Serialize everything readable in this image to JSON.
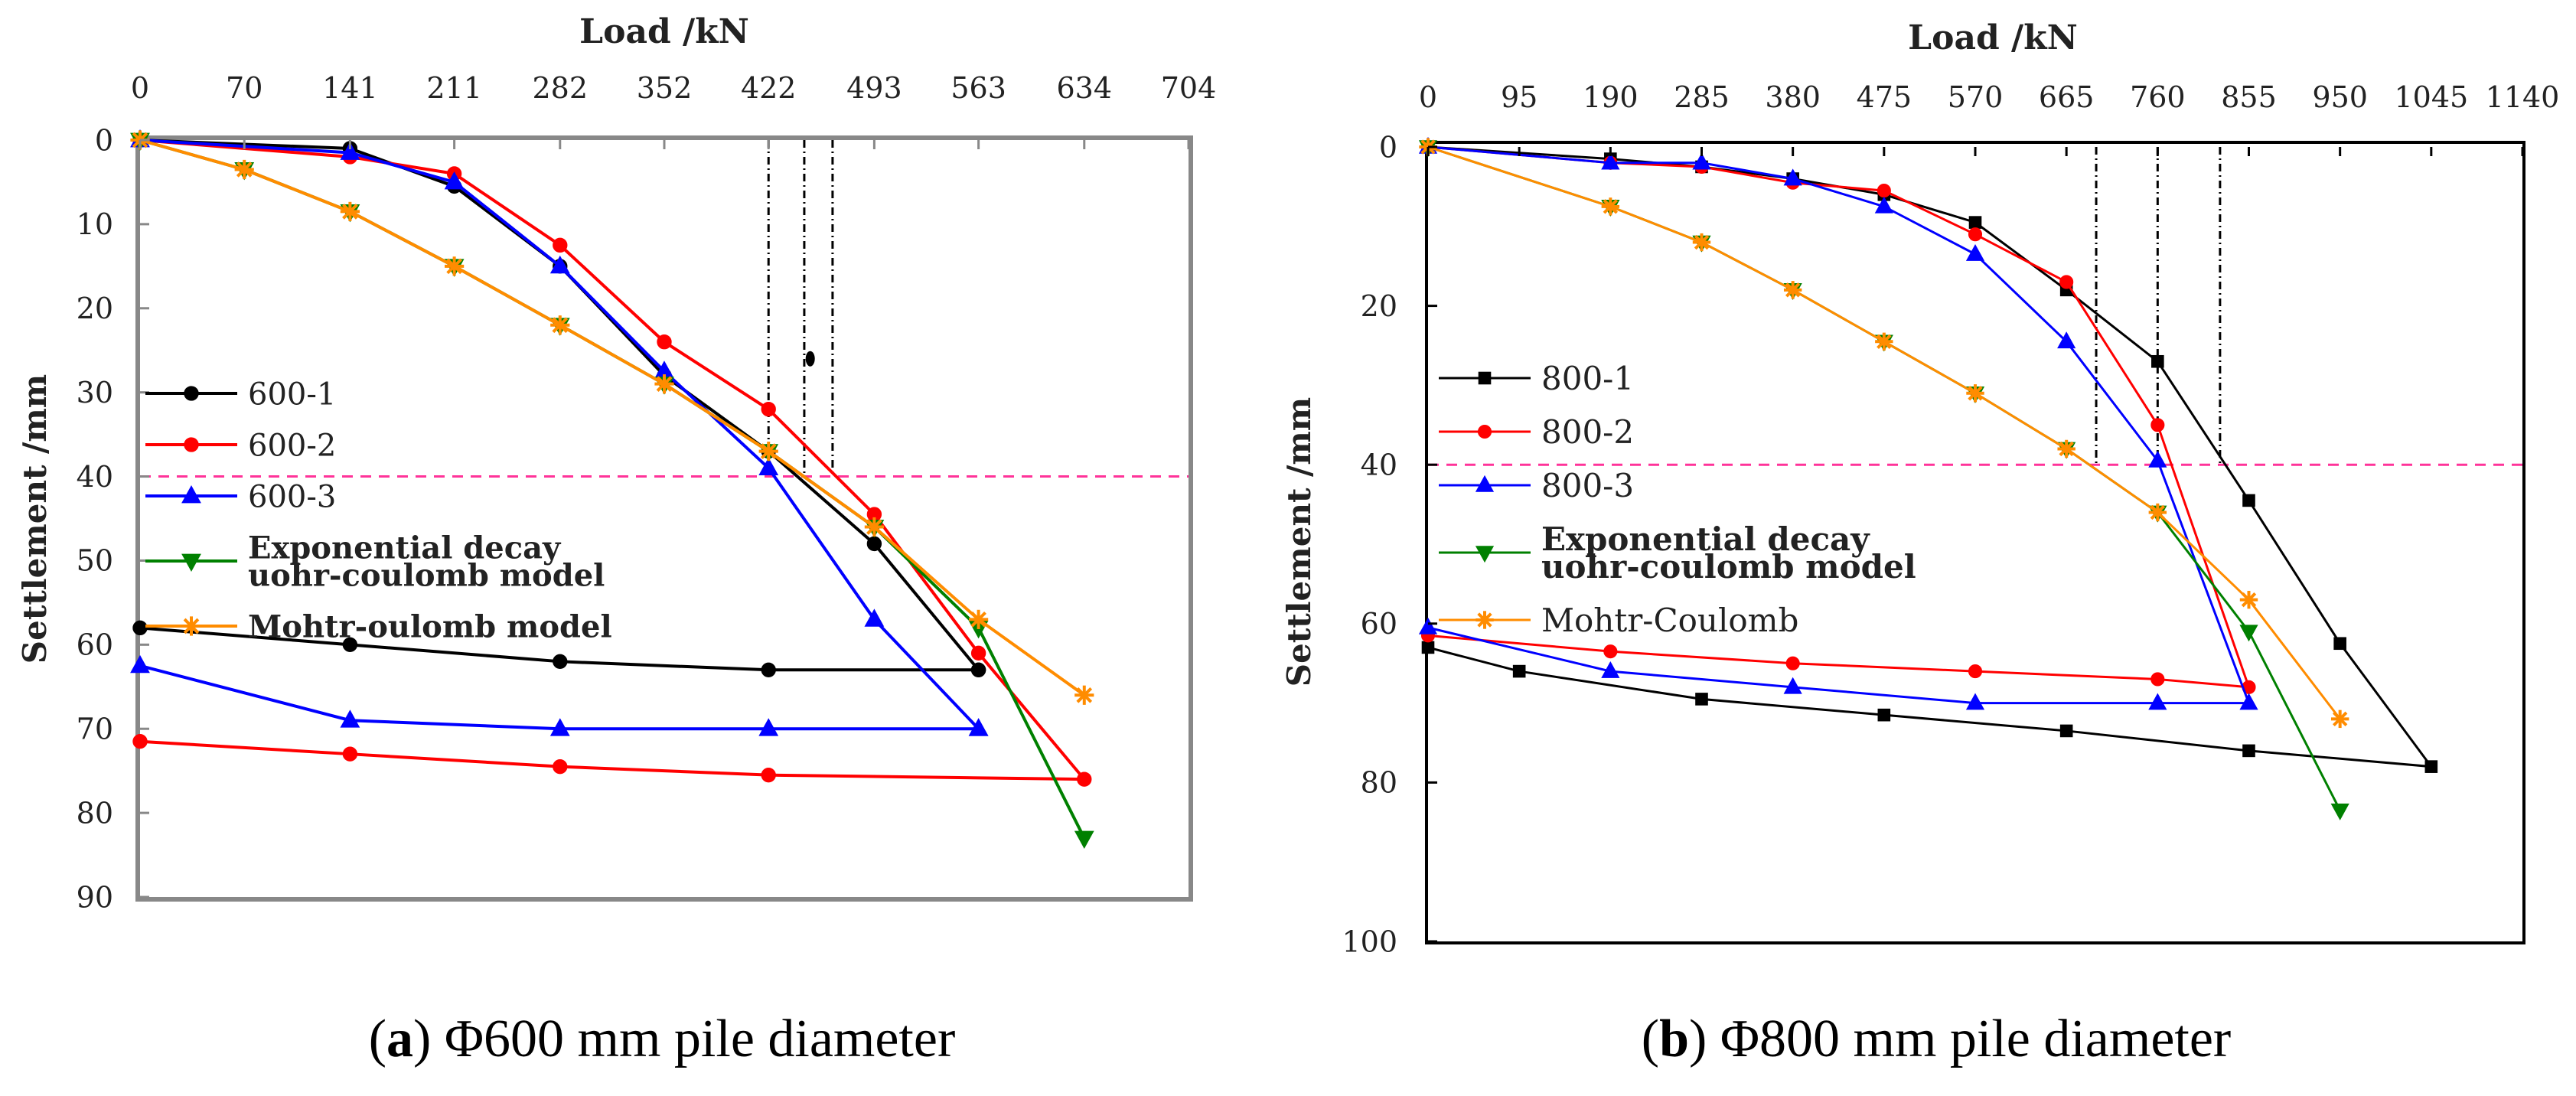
{
  "chart_data": [
    {
      "type": "line",
      "panel_label": "a",
      "caption": "Φ600 mm pile diameter",
      "xlabel": "Load /kN",
      "ylabel": "Settlement /mm",
      "x_ticks": [
        "0",
        "70",
        "141",
        "211",
        "282",
        "352",
        "422",
        "493",
        "563",
        "634",
        "704"
      ],
      "y_ticks": [
        "0",
        "10",
        "20",
        "30",
        "40",
        "50",
        "60",
        "70",
        "80",
        "90"
      ],
      "xlim": [
        0,
        704
      ],
      "ylim": [
        0,
        90
      ],
      "x_axis_position": "top",
      "y_inverted": true,
      "reference_line_y": 40,
      "vertical_markers_x": [
        422,
        446,
        465
      ],
      "annotation_point": {
        "x": 450,
        "y": 26
      },
      "series": [
        {
          "name": "600-1",
          "color": "#000000",
          "marker": "circle",
          "x": [
            0,
            141,
            211,
            282,
            352,
            422,
            493,
            563,
            563,
            422,
            282,
            141,
            0
          ],
          "y": [
            0,
            1,
            5.5,
            15,
            28,
            37,
            48,
            63,
            63,
            63,
            62,
            60,
            58
          ]
        },
        {
          "name": "600-2",
          "color": "#ff0000",
          "marker": "circle",
          "x": [
            0,
            141,
            211,
            282,
            352,
            422,
            493,
            563,
            634,
            422,
            282,
            141,
            0
          ],
          "y": [
            0,
            2,
            4,
            12.5,
            24,
            32,
            44.5,
            61,
            76,
            75.5,
            74.5,
            73,
            71.5
          ]
        },
        {
          "name": "600-3",
          "color": "#0000ff",
          "marker": "triangle",
          "x": [
            0,
            141,
            211,
            282,
            352,
            422,
            493,
            563,
            563,
            422,
            282,
            141,
            0
          ],
          "y": [
            0,
            1.5,
            5,
            15,
            27.5,
            39,
            57,
            70,
            70,
            70,
            70,
            69,
            62.5
          ]
        },
        {
          "name": "Exponential decay uohr-coulomb model",
          "legend_lines": [
            "Exponential decay",
            "uohr-coulomb model"
          ],
          "color": "#008000",
          "marker": "triangle-down",
          "x": [
            0,
            70,
            141,
            211,
            282,
            352,
            422,
            493,
            563,
            634
          ],
          "y": [
            0,
            3.5,
            8.5,
            15,
            22,
            29,
            37,
            46,
            58,
            83
          ]
        },
        {
          "name": "Mohtr-oulomb model",
          "color": "#ff8c00",
          "marker": "asterisk",
          "x": [
            0,
            70,
            141,
            211,
            282,
            352,
            422,
            493,
            563,
            634
          ],
          "y": [
            0,
            3.5,
            8.5,
            15,
            22,
            29,
            37,
            46,
            57,
            66
          ]
        }
      ]
    },
    {
      "type": "line",
      "panel_label": "b",
      "caption": "Φ800 mm pile diameter",
      "xlabel": "Load /kN",
      "ylabel": "Settlement /mm",
      "x_ticks": [
        "0",
        "95",
        "190",
        "285",
        "380",
        "475",
        "570",
        "665",
        "760",
        "855",
        "950",
        "1045",
        "1140"
      ],
      "y_ticks": [
        "0",
        "20",
        "40",
        "60",
        "80",
        "100"
      ],
      "xlim": [
        0,
        1140
      ],
      "ylim": [
        0,
        100
      ],
      "x_axis_position": "top",
      "y_inverted": true,
      "reference_line_y": 40,
      "vertical_markers_x": [
        696,
        760,
        825
      ],
      "series": [
        {
          "name": "800-1",
          "color": "#000000",
          "marker": "square",
          "x": [
            0,
            190,
            285,
            380,
            475,
            570,
            665,
            760,
            855,
            950,
            1045,
            855,
            665,
            475,
            285,
            95,
            0
          ],
          "y": [
            0,
            1.5,
            2.5,
            4,
            6,
            9.5,
            18,
            27,
            44.5,
            62.5,
            78,
            76,
            73.5,
            71.5,
            69.5,
            66,
            63
          ]
        },
        {
          "name": "800-2",
          "color": "#ff0000",
          "marker": "circle",
          "x": [
            0,
            190,
            285,
            380,
            475,
            570,
            665,
            760,
            855,
            760,
            570,
            380,
            190,
            0
          ],
          "y": [
            0,
            2,
            2.5,
            4.5,
            5.5,
            11,
            17,
            35,
            68,
            67,
            66,
            65,
            63.5,
            61.5
          ]
        },
        {
          "name": "800-3",
          "color": "#0000ff",
          "marker": "triangle",
          "x": [
            0,
            190,
            285,
            380,
            475,
            570,
            665,
            760,
            855,
            760,
            570,
            380,
            190,
            0
          ],
          "y": [
            0,
            2,
            2,
            4,
            7.5,
            13.5,
            24.5,
            39.5,
            70,
            70,
            70,
            68,
            66,
            60.5
          ]
        },
        {
          "name": "Exponential decay uohr-coulomb model",
          "legend_lines": [
            "Exponential decay",
            "uohr-coulomb model"
          ],
          "color": "#008000",
          "marker": "triangle-down",
          "x": [
            0,
            190,
            285,
            380,
            475,
            570,
            665,
            760,
            855,
            950
          ],
          "y": [
            0,
            7.5,
            12,
            18,
            24.5,
            31,
            38,
            46,
            61,
            83.5
          ]
        },
        {
          "name": "Mohtr-Coulomb",
          "color": "#ff8c00",
          "marker": "asterisk",
          "x": [
            0,
            190,
            285,
            380,
            475,
            570,
            665,
            760,
            855,
            950
          ],
          "y": [
            0,
            7.5,
            12,
            18,
            24.5,
            31,
            38,
            46,
            57,
            72
          ]
        }
      ]
    }
  ]
}
